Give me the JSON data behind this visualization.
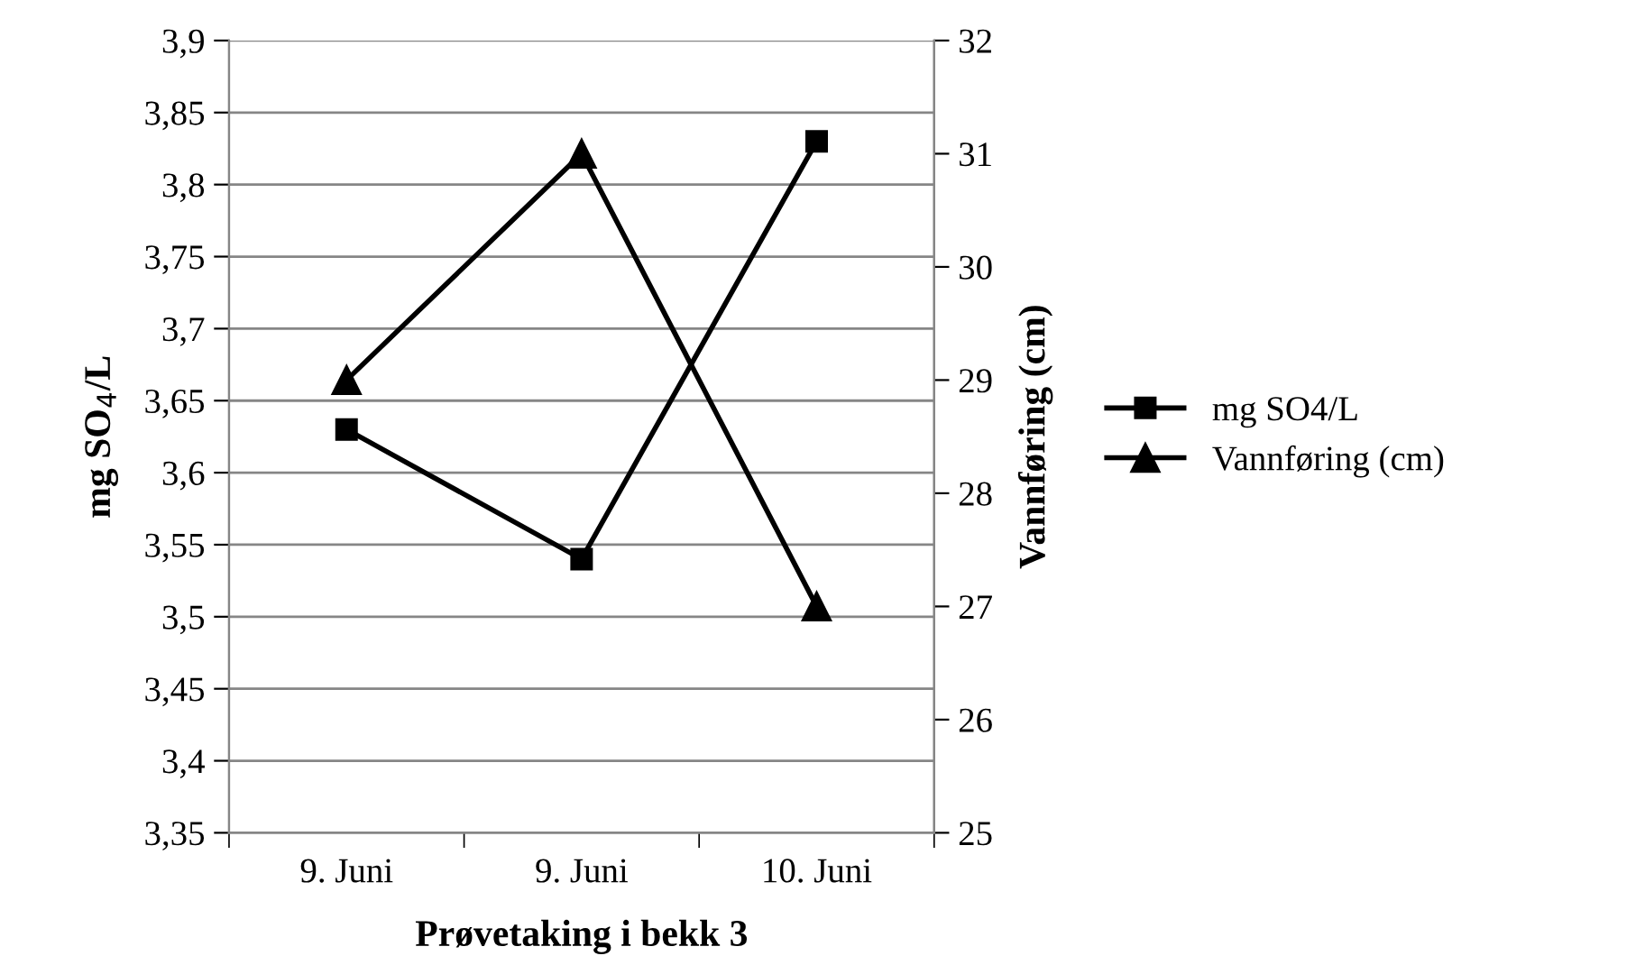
{
  "chart_data": {
    "type": "line",
    "xlabel": "Prøvetaking i bekk 3",
    "ylabel": "mg SO$_{4}$/L",
    "y2label": "Vannføring (cm)",
    "categories": [
      "9. Juni",
      "9. Juni",
      "10. Juni"
    ],
    "series": [
      {
        "name": "mg SO4/L",
        "color": "#000000",
        "values": [
          3.63,
          3.54,
          3.83
        ],
        "marker": "square"
      },
      {
        "name": "Vannføring (cm)",
        "color": "#000000",
        "values": [
          29,
          31,
          27
        ],
        "marker": "triangle",
        "axis": "y2"
      }
    ],
    "ylim": [
      3.35,
      3.9
    ],
    "yticks": [
      {
        "value": 3.35,
        "label": "3,35"
      },
      {
        "value": 3.4,
        "label": "3,4"
      },
      {
        "value": 3.45,
        "label": "3,45"
      },
      {
        "value": 3.5,
        "label": "3,5"
      },
      {
        "value": 3.55,
        "label": "3,55"
      },
      {
        "value": 3.6,
        "label": "3,6"
      },
      {
        "value": 3.65,
        "label": "3,65"
      },
      {
        "value": 3.7,
        "label": "3,7"
      },
      {
        "value": 3.75,
        "label": "3,75"
      },
      {
        "value": 3.8,
        "label": "3,8"
      },
      {
        "value": 3.85,
        "label": "3,85"
      },
      {
        "value": 3.9,
        "label": "3,9"
      }
    ],
    "y2lim": [
      25,
      32
    ],
    "y2ticks": [
      25,
      26,
      27,
      28,
      29,
      30,
      31,
      32
    ],
    "grid": "y",
    "legend": "right",
    "line_style": "solid"
  }
}
